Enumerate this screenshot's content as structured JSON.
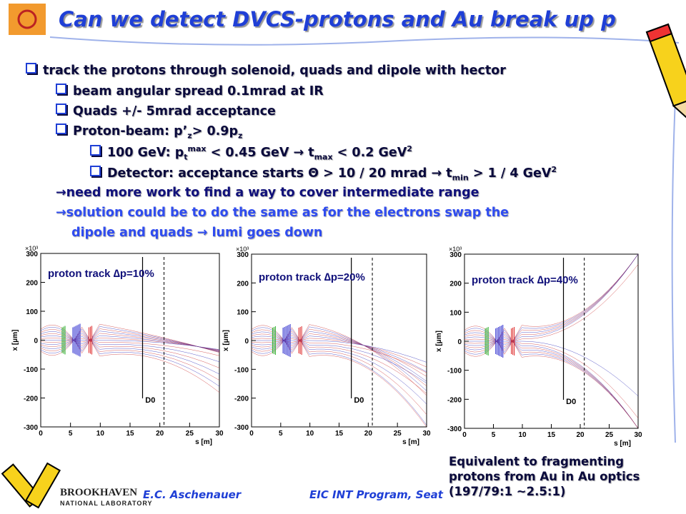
{
  "header": {
    "title": "Can we detect DVCS-protons and Au break up p"
  },
  "bullets": [
    {
      "segments": [
        "track the protons through solenoid, quads and dipole with hector"
      ]
    },
    {
      "segments": [
        "beam angular spread 0.1mrad at IR"
      ]
    },
    {
      "segments": [
        "Quads +/- 5mrad acceptance"
      ]
    },
    {
      "segments": [
        "Proton-beam: p’",
        "z",
        "> 0.9p",
        "z"
      ]
    },
    {
      "segments": [
        "100 GeV: p",
        "t",
        "max",
        " < 0.45 GeV → t",
        "max",
        " < 0.2 GeV",
        "2"
      ]
    },
    {
      "segments": [
        "Detector: acceptance starts Θ > 10 / 20 mrad → t",
        "min",
        " > 1 / 4 GeV",
        "2"
      ]
    },
    {
      "segments": [
        "→need more work to find a way to cover intermediate range"
      ]
    },
    {
      "segments": [
        "→solution could be to do the same as for the electrons swap the"
      ]
    },
    {
      "segments": [
        "dipole and quads → lumi goes down"
      ]
    }
  ],
  "plots": [
    {
      "title": "proton track ∆p=10%",
      "detector_label": "D0",
      "xlabel": "s [m]",
      "ylabel": "x [μm]",
      "y_scale": "×10³",
      "xlim": [
        0,
        30
      ],
      "ylim": [
        -300,
        300
      ],
      "xticks": [
        0,
        5,
        10,
        15,
        20,
        25,
        30
      ],
      "yticks": [
        -300,
        -200,
        -100,
        0,
        100,
        200,
        300
      ]
    },
    {
      "title": "proton track ∆p=20%",
      "detector_label": "D0",
      "xlabel": "s [m]",
      "ylabel": "x [μm]",
      "y_scale": "×10³",
      "xlim": [
        0,
        30
      ],
      "ylim": [
        -300,
        300
      ],
      "xticks": [
        0,
        5,
        10,
        15,
        20,
        25,
        30
      ],
      "yticks": [
        -300,
        -200,
        -100,
        0,
        100,
        200,
        300
      ]
    },
    {
      "title": "proton track ∆p=40%",
      "detector_label": "D0",
      "xlabel": "s [m]",
      "ylabel": "x [μm]",
      "y_scale": "×10³",
      "xlim": [
        0,
        30
      ],
      "ylim": [
        -300,
        300
      ],
      "xticks": [
        0,
        5,
        10,
        15,
        20,
        25,
        30
      ],
      "yticks": [
        -300,
        -200,
        -100,
        0,
        100,
        200,
        300
      ]
    }
  ],
  "note": {
    "lines": [
      "Equivalent to fragmenting",
      "protons from Au in Au optics",
      "(197/79:1 ~2.5:1)"
    ]
  },
  "footer": {
    "author": "E.C. Aschenauer",
    "event": "EIC INT Program, Seat",
    "logo_line1": "BROOKHAVEN",
    "logo_line2": "NATIONAL LABORATORY"
  }
}
